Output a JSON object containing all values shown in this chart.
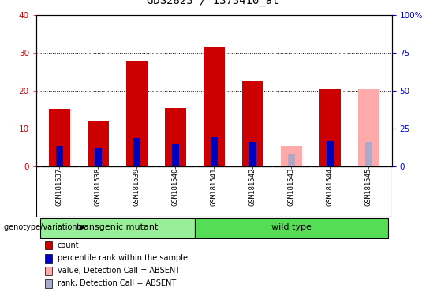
{
  "title": "GDS2823 / 1373410_at",
  "samples": [
    "GSM181537",
    "GSM181538",
    "GSM181539",
    "GSM181540",
    "GSM181541",
    "GSM181542",
    "GSM181543",
    "GSM181544",
    "GSM181545"
  ],
  "count_values": [
    15.2,
    12.2,
    28.0,
    15.5,
    31.5,
    22.5,
    null,
    20.5,
    null
  ],
  "rank_values": [
    13.5,
    12.8,
    19.0,
    15.0,
    20.0,
    16.5,
    null,
    17.0,
    null
  ],
  "absent_value": [
    null,
    null,
    null,
    null,
    null,
    null,
    5.5,
    null,
    20.5
  ],
  "absent_rank": [
    null,
    null,
    null,
    null,
    null,
    null,
    8.5,
    null,
    16.5
  ],
  "groups": [
    {
      "label": "transgenic mutant",
      "start": 0,
      "end": 4,
      "color": "#99ee99"
    },
    {
      "label": "wild type",
      "start": 4,
      "end": 9,
      "color": "#55dd55"
    }
  ],
  "group_label": "genotype/variation",
  "legend_items": [
    {
      "color": "#cc0000",
      "label": "count"
    },
    {
      "color": "#0000cc",
      "label": "percentile rank within the sample"
    },
    {
      "color": "#ffaaaa",
      "label": "value, Detection Call = ABSENT"
    },
    {
      "color": "#aaaacc",
      "label": "rank, Detection Call = ABSENT"
    }
  ],
  "ylim_left": [
    0,
    40
  ],
  "ylim_right": [
    0,
    100
  ],
  "yticks_left": [
    0,
    10,
    20,
    30,
    40
  ],
  "ytick_labels_left": [
    "0",
    "10",
    "20",
    "30",
    "40"
  ],
  "yticks_right": [
    0,
    25,
    50,
    75,
    100
  ],
  "ytick_labels_right": [
    "0",
    "25",
    "50",
    "75",
    "100%"
  ],
  "count_color": "#cc0000",
  "rank_color": "#0000bb",
  "absent_value_color": "#ffaaaa",
  "absent_rank_color": "#aaaacc",
  "plot_bg": "#ffffff",
  "sample_bg": "#cccccc",
  "fig_bg": "#ffffff"
}
